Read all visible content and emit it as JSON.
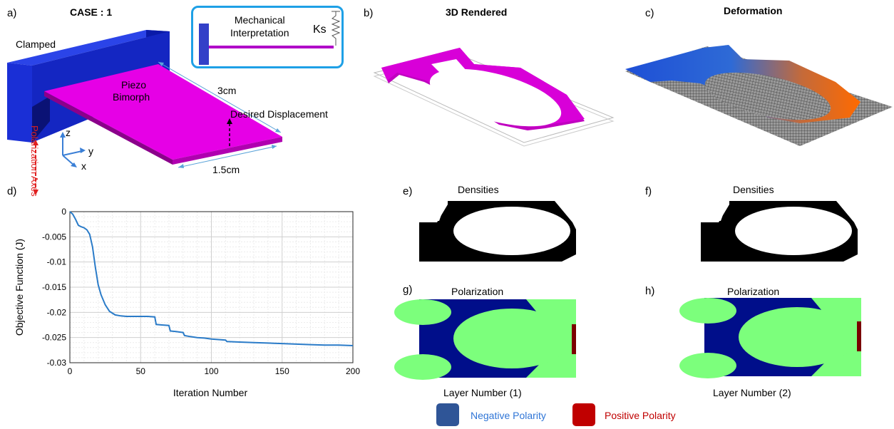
{
  "panels": {
    "a": {
      "label": "a)",
      "title": "CASE : 1",
      "clamped": "Clamped",
      "piezo_line1": "Piezo",
      "piezo_line2": "Bimorph",
      "dim_length": "3cm",
      "dim_width": "1.5cm",
      "displacement": "Desired Displacement",
      "axis_z": "z",
      "axis_y": "y",
      "axis_x": "x",
      "polarization_axes": "Polarization Axes",
      "inset_line1": "Mechanical",
      "inset_line2": "Interpretation",
      "inset_spring": "Ks"
    },
    "b": {
      "label": "b)",
      "title": "3D Rendered"
    },
    "c": {
      "label": "c)",
      "title": "Deformation"
    },
    "d": {
      "label": "d)"
    },
    "e": {
      "label": "e)",
      "title": "Densities"
    },
    "f": {
      "label": "f)",
      "title": "Densities"
    },
    "g": {
      "label": "g)",
      "title": "Polarization",
      "caption": "Layer Number (1)"
    },
    "h": {
      "label": "h)",
      "title": "Polarization",
      "caption": "Layer Number (2)"
    }
  },
  "legend": {
    "negative": "Negative Polarity",
    "positive": "Positive Polarity",
    "negative_color": "#2f5597",
    "positive_color": "#c00000"
  },
  "colors": {
    "magenta": "#e600e6",
    "beam_side": "#8b008b",
    "clamp": "#1a2fd6",
    "inset_border": "#1ea0e6",
    "pol_blue": "#000e8a",
    "pol_green": "#7cff7c",
    "pol_red": "#7a0000",
    "line": "#2a7bc8"
  },
  "chart_data": {
    "type": "line",
    "xlabel": "Iteration Number",
    "ylabel": "Objective Function (J)",
    "xlim": [
      0,
      200
    ],
    "ylim": [
      -0.03,
      0
    ],
    "xticks": [
      0,
      50,
      100,
      150,
      200
    ],
    "yticks": [
      0,
      -0.005,
      -0.01,
      -0.015,
      -0.02,
      -0.025,
      -0.03
    ],
    "ytick_labels": [
      "0",
      "-0.005",
      "-0.01",
      "-0.015",
      "-0.02",
      "-0.025",
      "-0.03"
    ],
    "grid": true,
    "series": [
      {
        "x": [
          0,
          2,
          4,
          6,
          8,
          10,
          12,
          14,
          16,
          18,
          20,
          22,
          25,
          28,
          32,
          36,
          40,
          45,
          50,
          55,
          60,
          61,
          65,
          70,
          71,
          75,
          80,
          81,
          85,
          90,
          95,
          100,
          110,
          111,
          120,
          130,
          140,
          150,
          160,
          170,
          180,
          190,
          200
        ],
        "y": [
          0,
          -0.0005,
          -0.0015,
          -0.0027,
          -0.003,
          -0.0032,
          -0.0036,
          -0.0045,
          -0.007,
          -0.011,
          -0.0145,
          -0.0165,
          -0.0185,
          -0.0198,
          -0.0205,
          -0.0207,
          -0.0208,
          -0.0208,
          -0.0208,
          -0.0208,
          -0.0209,
          -0.0224,
          -0.0225,
          -0.0226,
          -0.0237,
          -0.0238,
          -0.024,
          -0.0246,
          -0.0248,
          -0.025,
          -0.0251,
          -0.0253,
          -0.0255,
          -0.0258,
          -0.0259,
          -0.026,
          -0.0261,
          -0.0262,
          -0.0263,
          -0.0264,
          -0.0265,
          -0.0265,
          -0.0266
        ]
      }
    ]
  }
}
